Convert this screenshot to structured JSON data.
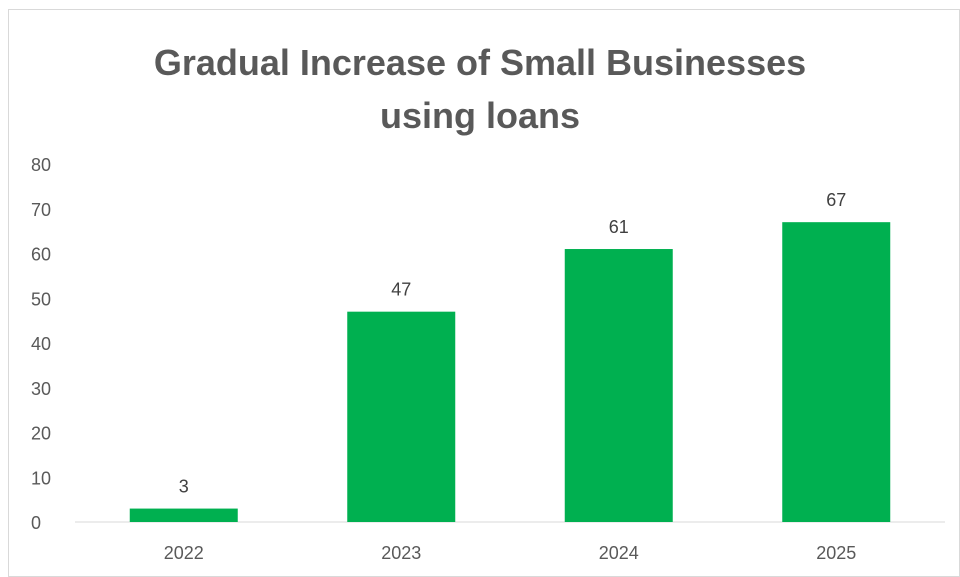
{
  "chart_data": {
    "type": "bar",
    "title_line1": "Gradual Increase of Small Businesses",
    "title_line2": "using loans",
    "categories": [
      "2022",
      "2023",
      "2024",
      "2025"
    ],
    "values": [
      3,
      47,
      61,
      67
    ],
    "data_labels": [
      "3",
      "47",
      "61",
      "67"
    ],
    "xlabel": "",
    "ylabel": "",
    "ylim": [
      0,
      80
    ],
    "yticks": [
      "0",
      "10",
      "20",
      "30",
      "40",
      "50",
      "60",
      "70",
      "80"
    ],
    "grid": false,
    "legend": "none",
    "bar_color": "#00b050"
  }
}
